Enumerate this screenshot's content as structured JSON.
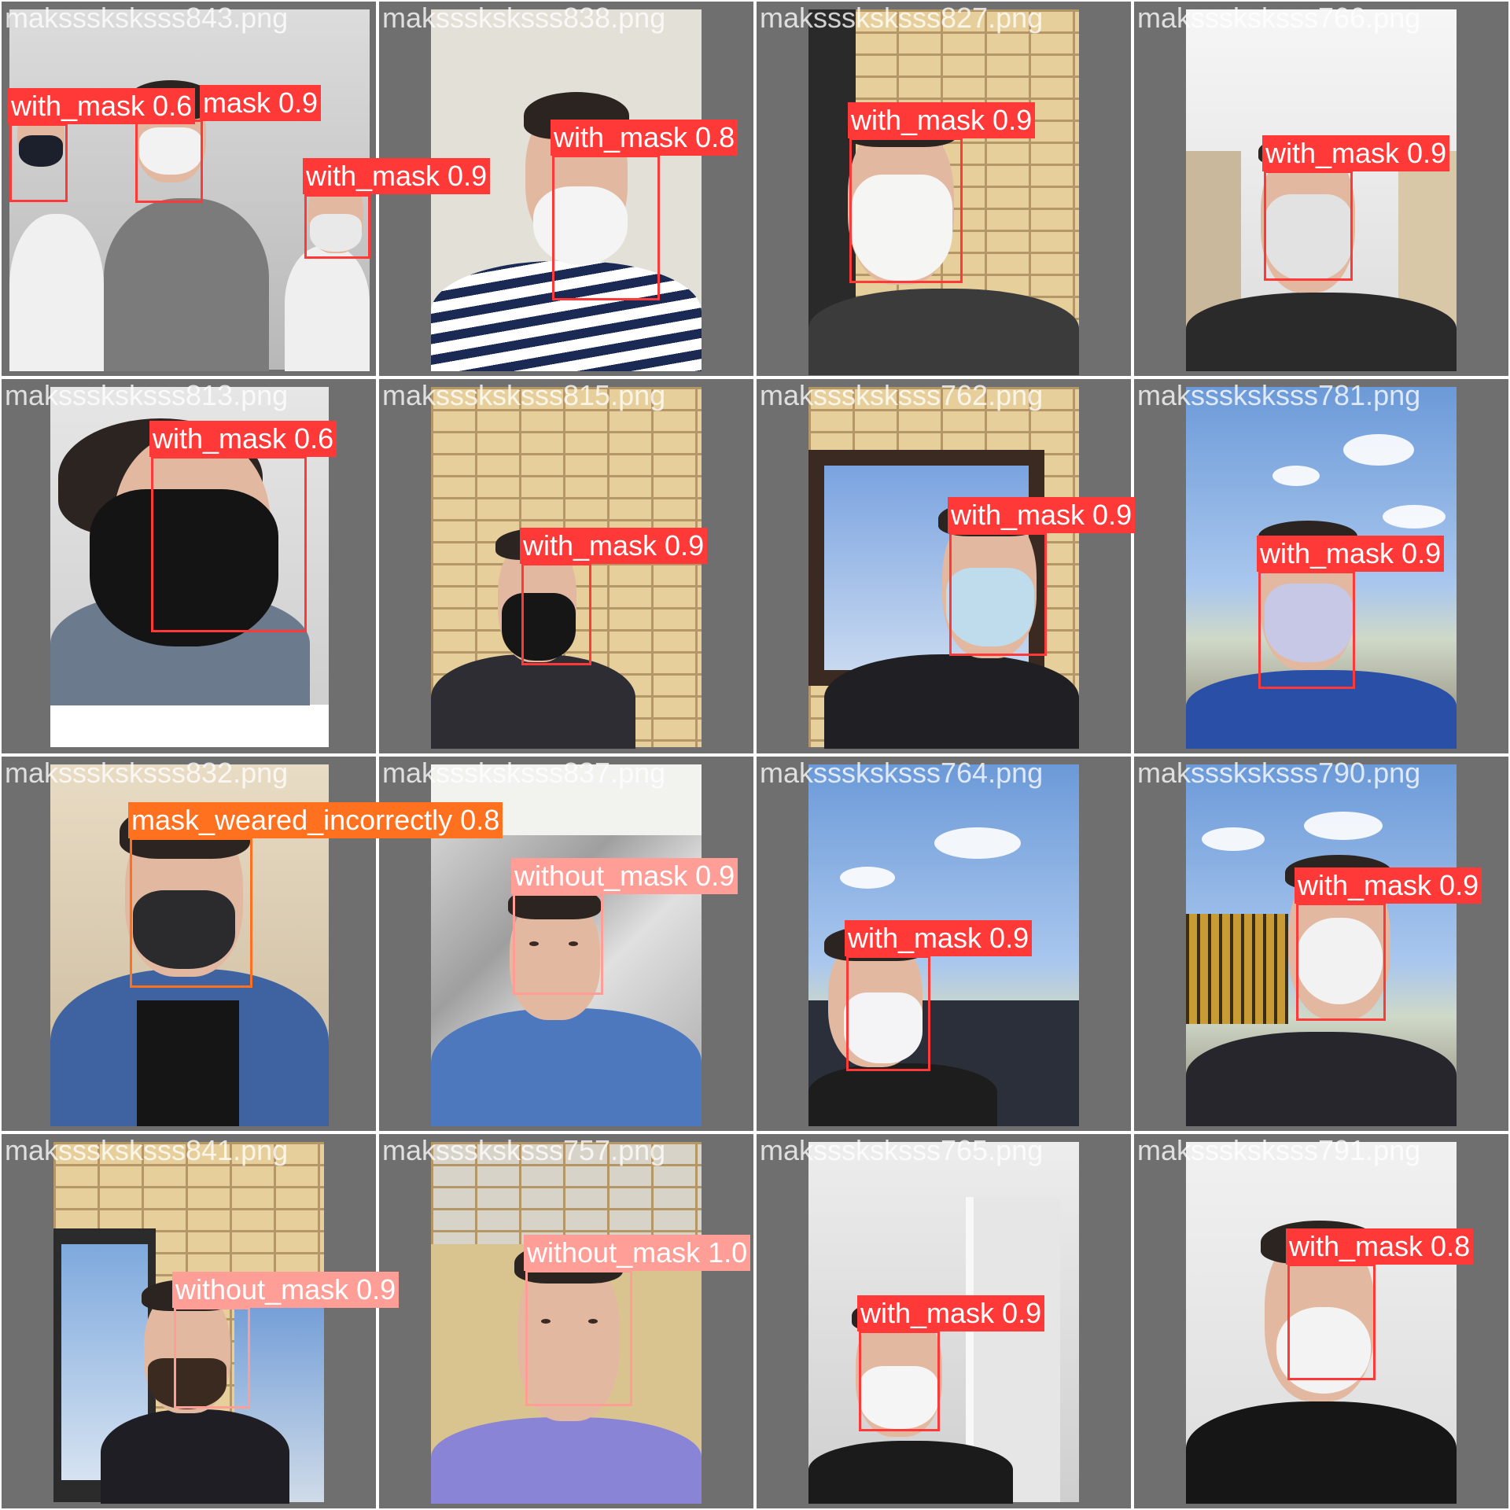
{
  "colors": {
    "with_mask": "#ff3838",
    "without_mask": "#ff9d97",
    "mask_weared_incorrectly": "#ff701f",
    "cell_background": "#6f6f6f"
  },
  "cells": [
    {
      "filename": "maksssksksss843.png",
      "scene": "crowd",
      "detections": [
        {
          "label": "with_mask 0.6",
          "cls": "with"
        },
        {
          "label": "mask 0.9",
          "cls": "with"
        },
        {
          "label": "with_mask 0.9",
          "cls": "with"
        }
      ]
    },
    {
      "filename": "maksssksksss838.png",
      "scene": "striped-shirt",
      "detections": [
        {
          "label": "with_mask 0.8",
          "cls": "with"
        }
      ]
    },
    {
      "filename": "maksssksksss827.png",
      "scene": "brick-wall",
      "detections": [
        {
          "label": "with_mask 0.9",
          "cls": "with"
        }
      ]
    },
    {
      "filename": "maksssksksss766.png",
      "scene": "indoor-curtain",
      "detections": [
        {
          "label": "with_mask 0.9",
          "cls": "with"
        }
      ]
    },
    {
      "filename": "maksssksksss813.png",
      "scene": "black-mask-studio",
      "detections": [
        {
          "label": "with_mask 0.6",
          "cls": "with"
        }
      ]
    },
    {
      "filename": "maksssksksss815.png",
      "scene": "brick-wall",
      "detections": [
        {
          "label": "with_mask 0.9",
          "cls": "with"
        }
      ]
    },
    {
      "filename": "maksssksksss762.png",
      "scene": "window-brick",
      "detections": [
        {
          "label": "with_mask 0.9",
          "cls": "with"
        }
      ]
    },
    {
      "filename": "maksssksksss781.png",
      "scene": "sky-outdoor",
      "detections": [
        {
          "label": "with_mask 0.9",
          "cls": "with"
        }
      ]
    },
    {
      "filename": "maksssksksss832.png",
      "scene": "denim-jacket",
      "detections": [
        {
          "label": "mask_weared_incorrectly 0.8",
          "cls": "incorrect"
        }
      ]
    },
    {
      "filename": "maksssksksss837.png",
      "scene": "textured-wall",
      "detections": [
        {
          "label": "without_mask 0.9",
          "cls": "without"
        }
      ]
    },
    {
      "filename": "maksssksksss764.png",
      "scene": "sky-outdoor",
      "detections": [
        {
          "label": "with_mask 0.9",
          "cls": "with"
        }
      ]
    },
    {
      "filename": "maksssksksss790.png",
      "scene": "sky-fence",
      "detections": [
        {
          "label": "with_mask 0.9",
          "cls": "with"
        }
      ]
    },
    {
      "filename": "maksssksksss841.png",
      "scene": "window-brick",
      "detections": [
        {
          "label": "without_mask 0.9",
          "cls": "without"
        }
      ]
    },
    {
      "filename": "maksssksksss757.png",
      "scene": "brick-sofa",
      "detections": [
        {
          "label": "without_mask 1.0",
          "cls": "without"
        }
      ]
    },
    {
      "filename": "maksssksksss765.png",
      "scene": "indoor-door",
      "detections": [
        {
          "label": "with_mask 0.9",
          "cls": "with"
        }
      ]
    },
    {
      "filename": "maksssksksss791.png",
      "scene": "indoor-plain",
      "detections": [
        {
          "label": "with_mask 0.8",
          "cls": "with"
        }
      ]
    }
  ]
}
